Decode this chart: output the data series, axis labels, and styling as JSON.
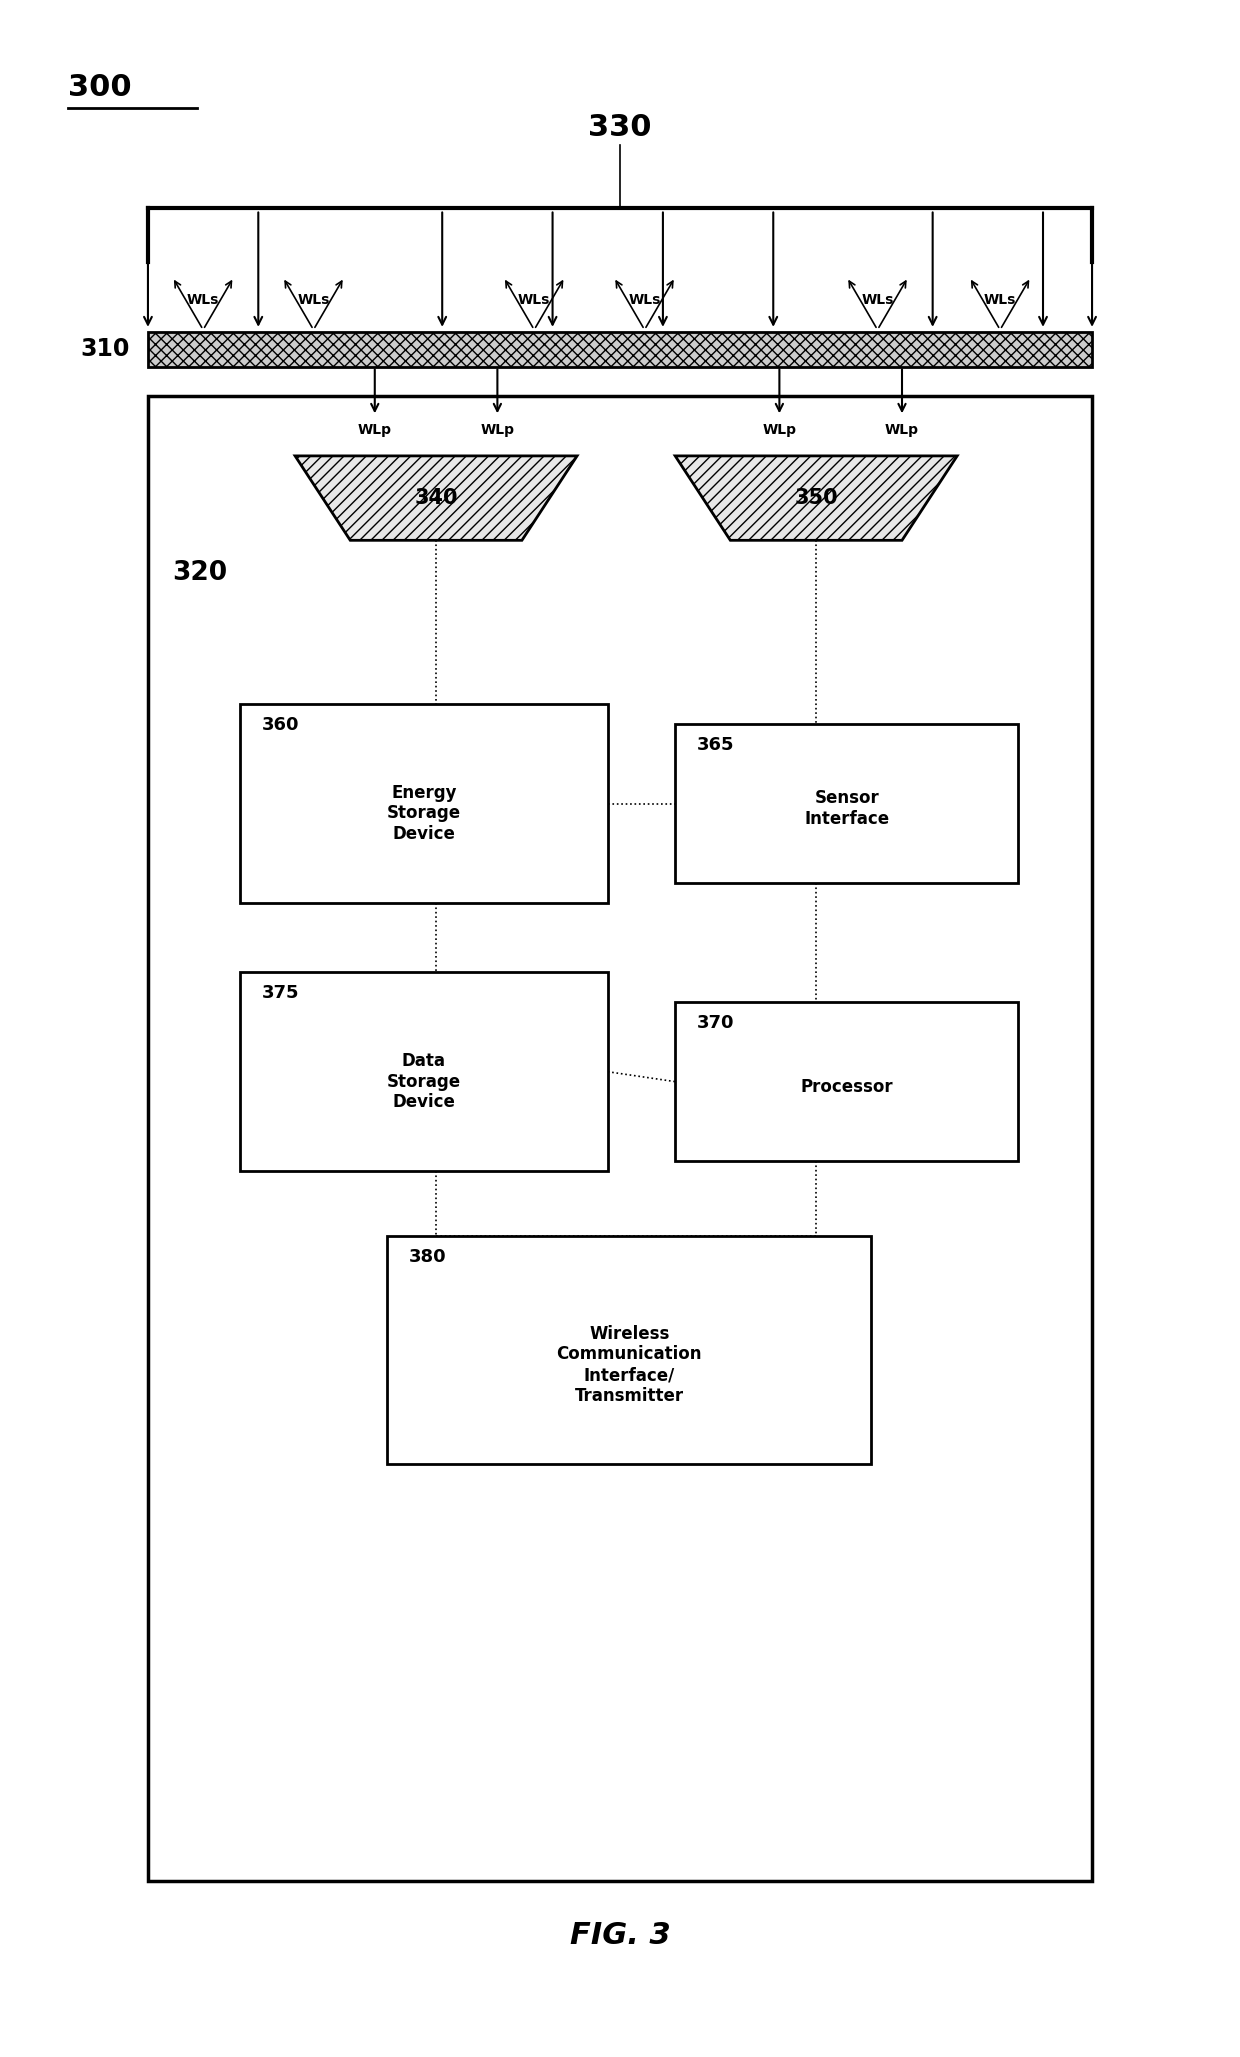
{
  "fig_width": 12.4,
  "fig_height": 20.57,
  "bg_color": "#ffffff",
  "label_300": "300",
  "label_330": "330",
  "label_310": "310",
  "label_320": "320",
  "label_340": "340",
  "label_350": "350",
  "label_360": "360",
  "label_365": "365",
  "label_375": "375",
  "label_370": "370",
  "label_380": "380",
  "box_360_text": "Energy\nStorage\nDevice",
  "box_365_text": "Sensor\nInterface",
  "box_375_text": "Data\nStorage\nDevice",
  "box_370_text": "Processor",
  "box_380_text": "Wireless\nCommunication\nInterface/\nTransmitter",
  "fig_label": "FIG. 3",
  "wls_label": "WLs",
  "wlp_label": "WLp"
}
